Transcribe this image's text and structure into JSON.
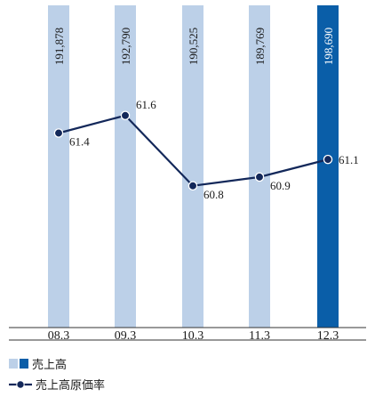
{
  "chart_data": {
    "type": "bar",
    "categories": [
      "08.3",
      "09.3",
      "10.3",
      "11.3",
      "12.3"
    ],
    "series": [
      {
        "name": "売上高",
        "type": "bar",
        "values": [
          191878,
          192790,
          190525,
          189769,
          198690
        ],
        "value_labels": [
          "191,878",
          "192,790",
          "190,525",
          "189,769",
          "198,690"
        ],
        "highlight_index": 4
      },
      {
        "name": "売上高原価率",
        "type": "line",
        "values": [
          61.4,
          61.6,
          60.8,
          60.9,
          61.1
        ],
        "value_labels": [
          "61.4",
          "61.6",
          "60.8",
          "60.9",
          "61.1"
        ],
        "ylim": [
          60.2,
          61.8
        ]
      }
    ],
    "legend_position": "bottom-left",
    "grid": false,
    "colors": {
      "bar": "#bcd0e8",
      "bar_highlight": "#0a5ea8",
      "line": "#13285a",
      "axis": "#333333",
      "text": "#1a1a1a",
      "text_on_highlight": "#ffffff"
    }
  }
}
